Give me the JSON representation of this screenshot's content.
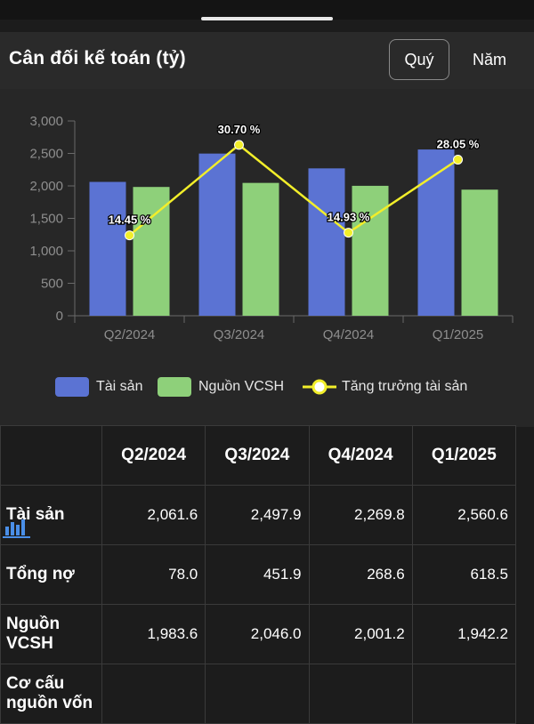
{
  "header": {
    "title": "Cân đối kế toán (tỷ)",
    "tab_quarter": "Quý",
    "tab_year": "Năm"
  },
  "chart_data": {
    "type": "bar",
    "categories": [
      "Q2/2024",
      "Q3/2024",
      "Q4/2024",
      "Q1/2025"
    ],
    "series": [
      {
        "name": "Tài sản",
        "values": [
          2061.6,
          2497.9,
          2269.8,
          2560.6
        ],
        "color": "#5b73d3"
      },
      {
        "name": "Nguồn VCSH",
        "values": [
          1983.6,
          2046.0,
          2001.2,
          1942.2
        ],
        "color": "#8ed07a"
      }
    ],
    "line_series": {
      "name": "Tăng trưởng tài sản",
      "values": [
        14.45,
        30.7,
        14.93,
        28.05
      ],
      "labels": [
        "14.45 %",
        "30.70 %",
        "14.93 %",
        "28.05 %"
      ],
      "color": "#f2ee2a"
    },
    "ylim": [
      0,
      3000
    ],
    "yticks": [
      "0",
      "500",
      "1,000",
      "1,500",
      "2,000",
      "2,500",
      "3,000"
    ],
    "legend_position": "bottom"
  },
  "legend": {
    "assets": "Tài sản",
    "equity": "Nguồn VCSH",
    "growth": "Tăng trưởng tài sản"
  },
  "table": {
    "columns": [
      "Q2/2024",
      "Q3/2024",
      "Q4/2024",
      "Q1/2025"
    ],
    "rows": [
      {
        "label": "Tài sản",
        "values": [
          "2,061.6",
          "2,497.9",
          "2,269.8",
          "2,560.6"
        ]
      },
      {
        "label": "Tổng nợ",
        "values": [
          "78.0",
          "451.9",
          "268.6",
          "618.5"
        ]
      },
      {
        "label": "Nguồn VCSH",
        "values": [
          "1,983.6",
          "2,046.0",
          "2,001.2",
          "1,942.2"
        ]
      },
      {
        "label": "Cơ cấu nguồn vốn",
        "icons": [
          "bar-chart-icon",
          "bar-chart-icon",
          "bar-chart-icon",
          "bar-chart-icon"
        ]
      }
    ]
  }
}
